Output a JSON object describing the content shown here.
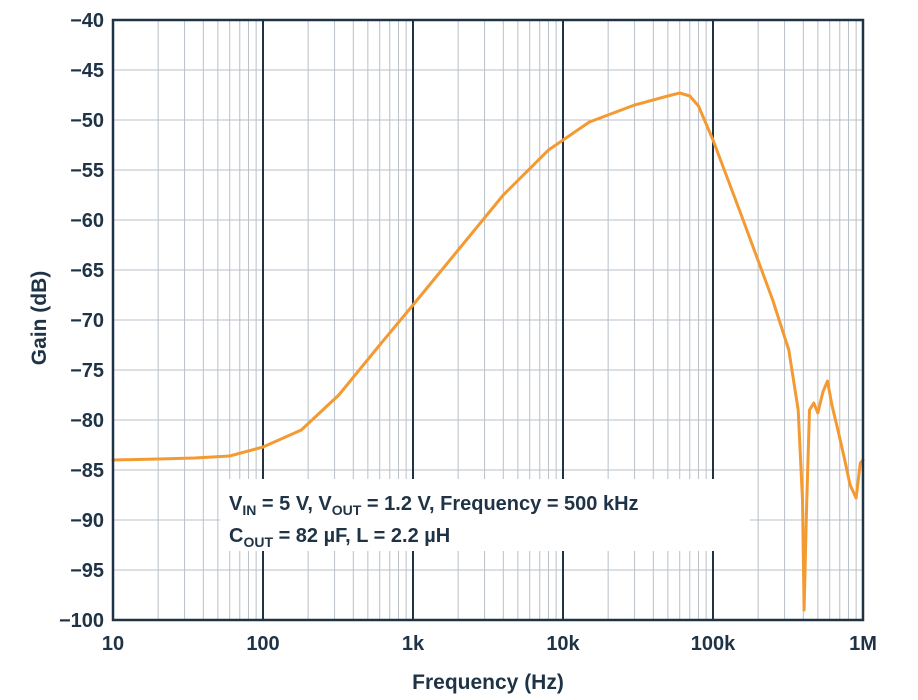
{
  "chart_data": {
    "type": "line",
    "xlabel": "Frequency (Hz)",
    "ylabel": "Gain (dB)",
    "x_scale": "log",
    "xlim": [
      10,
      1000000
    ],
    "ylim": [
      -100,
      -40
    ],
    "grid": true,
    "x_ticks": [
      {
        "value": 10,
        "label": "10"
      },
      {
        "value": 100,
        "label": "100"
      },
      {
        "value": 1000,
        "label": "1k"
      },
      {
        "value": 10000,
        "label": "10k"
      },
      {
        "value": 100000,
        "label": "100k"
      },
      {
        "value": 1000000,
        "label": "1M"
      }
    ],
    "y_ticks": [
      {
        "value": -40,
        "label": "−40"
      },
      {
        "value": -45,
        "label": "−45"
      },
      {
        "value": -50,
        "label": "−50"
      },
      {
        "value": -55,
        "label": "−55"
      },
      {
        "value": -60,
        "label": "−60"
      },
      {
        "value": -65,
        "label": "−65"
      },
      {
        "value": -70,
        "label": "−70"
      },
      {
        "value": -75,
        "label": "−75"
      },
      {
        "value": -80,
        "label": "−80"
      },
      {
        "value": -85,
        "label": "−85"
      },
      {
        "value": -90,
        "label": "−90"
      },
      {
        "value": -95,
        "label": "−95"
      },
      {
        "value": -100,
        "label": "−100"
      }
    ],
    "annotation": {
      "line1": [
        {
          "text": "V",
          "sub": false
        },
        {
          "text": "IN",
          "sub": true
        },
        {
          "text": " = 5 V, V",
          "sub": false
        },
        {
          "text": "OUT",
          "sub": true
        },
        {
          "text": " = 1.2 V, Frequency = 500 kHz",
          "sub": false
        }
      ],
      "line2": [
        {
          "text": "C",
          "sub": false
        },
        {
          "text": "OUT",
          "sub": true
        },
        {
          "text": " = 82 µF, L = 2.2 µH",
          "sub": false
        }
      ]
    },
    "series": [
      {
        "color": "#f39a33",
        "x": [
          10,
          20,
          35,
          60,
          100,
          180,
          320,
          600,
          1000,
          2000,
          4000,
          8000,
          15000,
          30000,
          50000,
          60000,
          70000,
          80000,
          100000,
          150000,
          250000,
          320000,
          370000,
          395000,
          405000,
          420000,
          440000,
          470000,
          500000,
          540000,
          580000,
          620000,
          680000,
          750000,
          820000,
          900000,
          960000,
          1000000
        ],
        "y": [
          -84,
          -83.9,
          -83.8,
          -83.6,
          -82.7,
          -81,
          -77.5,
          -72.5,
          -68.5,
          -63,
          -57.5,
          -53,
          -50.2,
          -48.5,
          -47.6,
          -47.3,
          -47.6,
          -48.6,
          -52,
          -59,
          -68,
          -73,
          -79,
          -88,
          -99,
          -89,
          -79,
          -78.3,
          -79.3,
          -77.2,
          -76.1,
          -78.5,
          -81,
          -83.8,
          -86.5,
          -87.8,
          -84.3,
          -84
        ]
      }
    ]
  }
}
